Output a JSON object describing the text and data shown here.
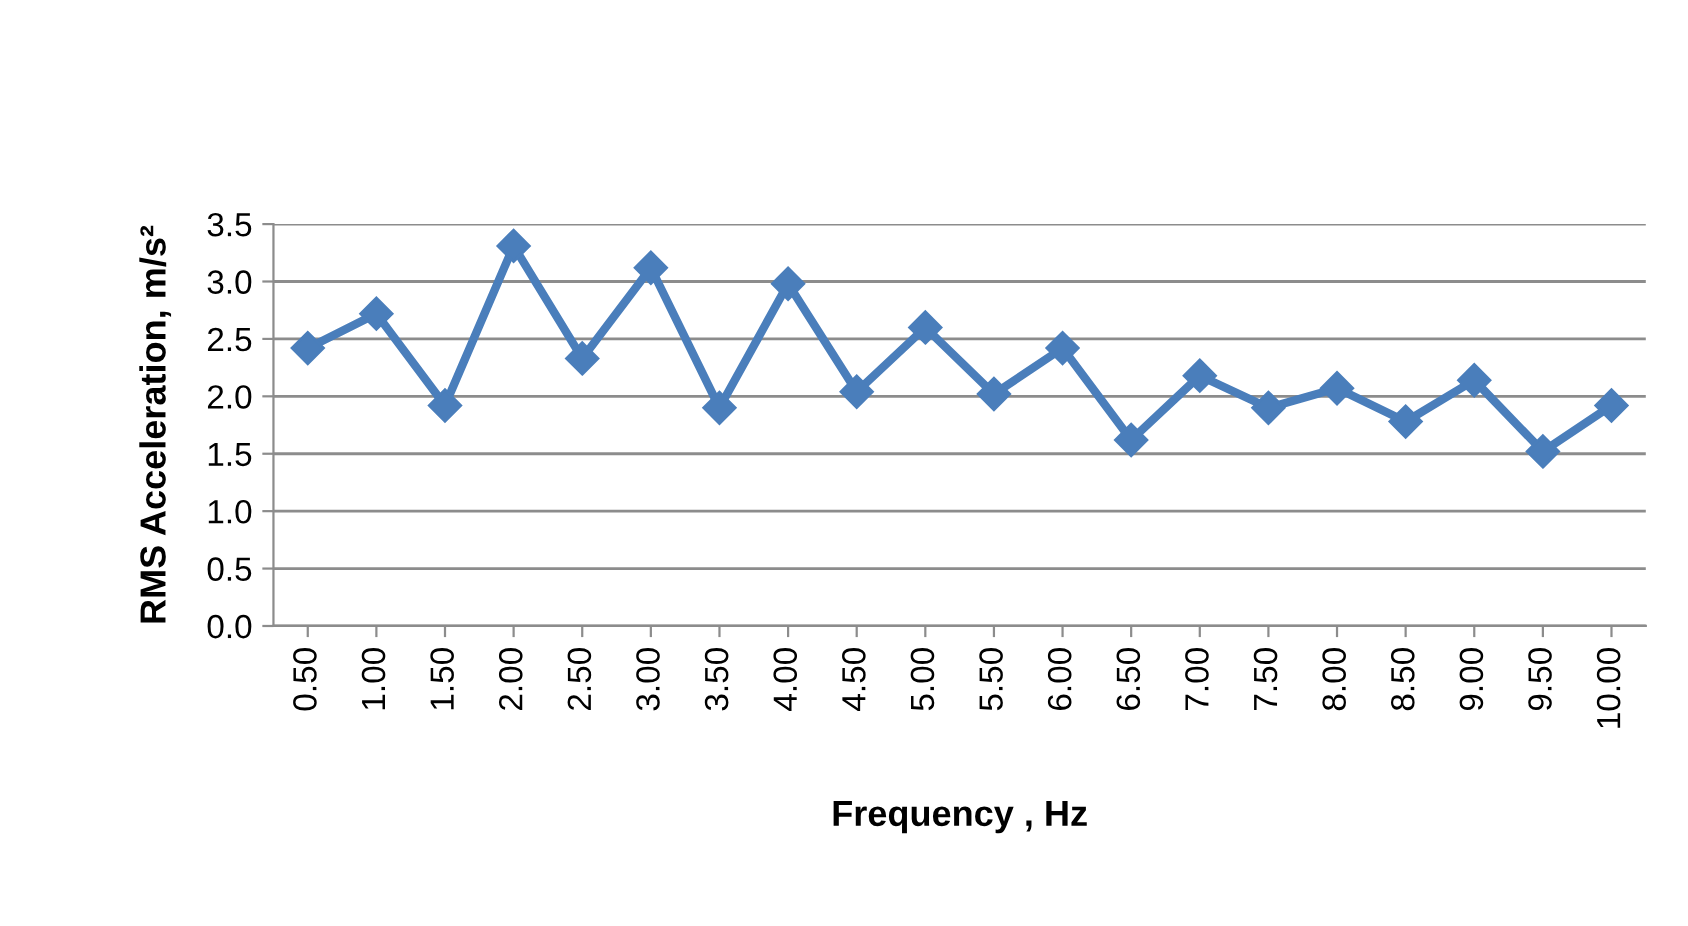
{
  "chart_data": {
    "type": "line",
    "xlabel": "Frequency , Hz",
    "ylabel": "RMS Acceleration, m/s²",
    "categories": [
      "0.50",
      "1.00",
      "1.50",
      "2.00",
      "2.50",
      "3.00",
      "3.50",
      "4.00",
      "4.50",
      "5.00",
      "5.50",
      "6.00",
      "6.50",
      "7.00",
      "7.50",
      "8.00",
      "8.50",
      "9.00",
      "9.50",
      "10.00"
    ],
    "series": [
      {
        "color": "#4a7ebb",
        "values": [
          2.42,
          2.72,
          1.92,
          3.31,
          2.33,
          3.12,
          1.9,
          2.98,
          2.04,
          2.6,
          2.02,
          2.42,
          1.62,
          2.18,
          1.9,
          2.07,
          1.78,
          2.14,
          1.52,
          1.92
        ]
      }
    ],
    "ylim": [
      0,
      3.5
    ],
    "yticks": [
      {
        "value": 0,
        "label": "0.0"
      },
      {
        "value": 0.5,
        "label": "0.5"
      },
      {
        "value": 1,
        "label": "1.0"
      },
      {
        "value": 1.5,
        "label": "1.5"
      },
      {
        "value": 2,
        "label": "2.0"
      },
      {
        "value": 2.5,
        "label": "2.5"
      },
      {
        "value": 3,
        "label": "3.0"
      },
      {
        "value": 3.5,
        "label": "3.5"
      }
    ],
    "grid": "y",
    "marker": "diamond",
    "line_style": "solid"
  }
}
